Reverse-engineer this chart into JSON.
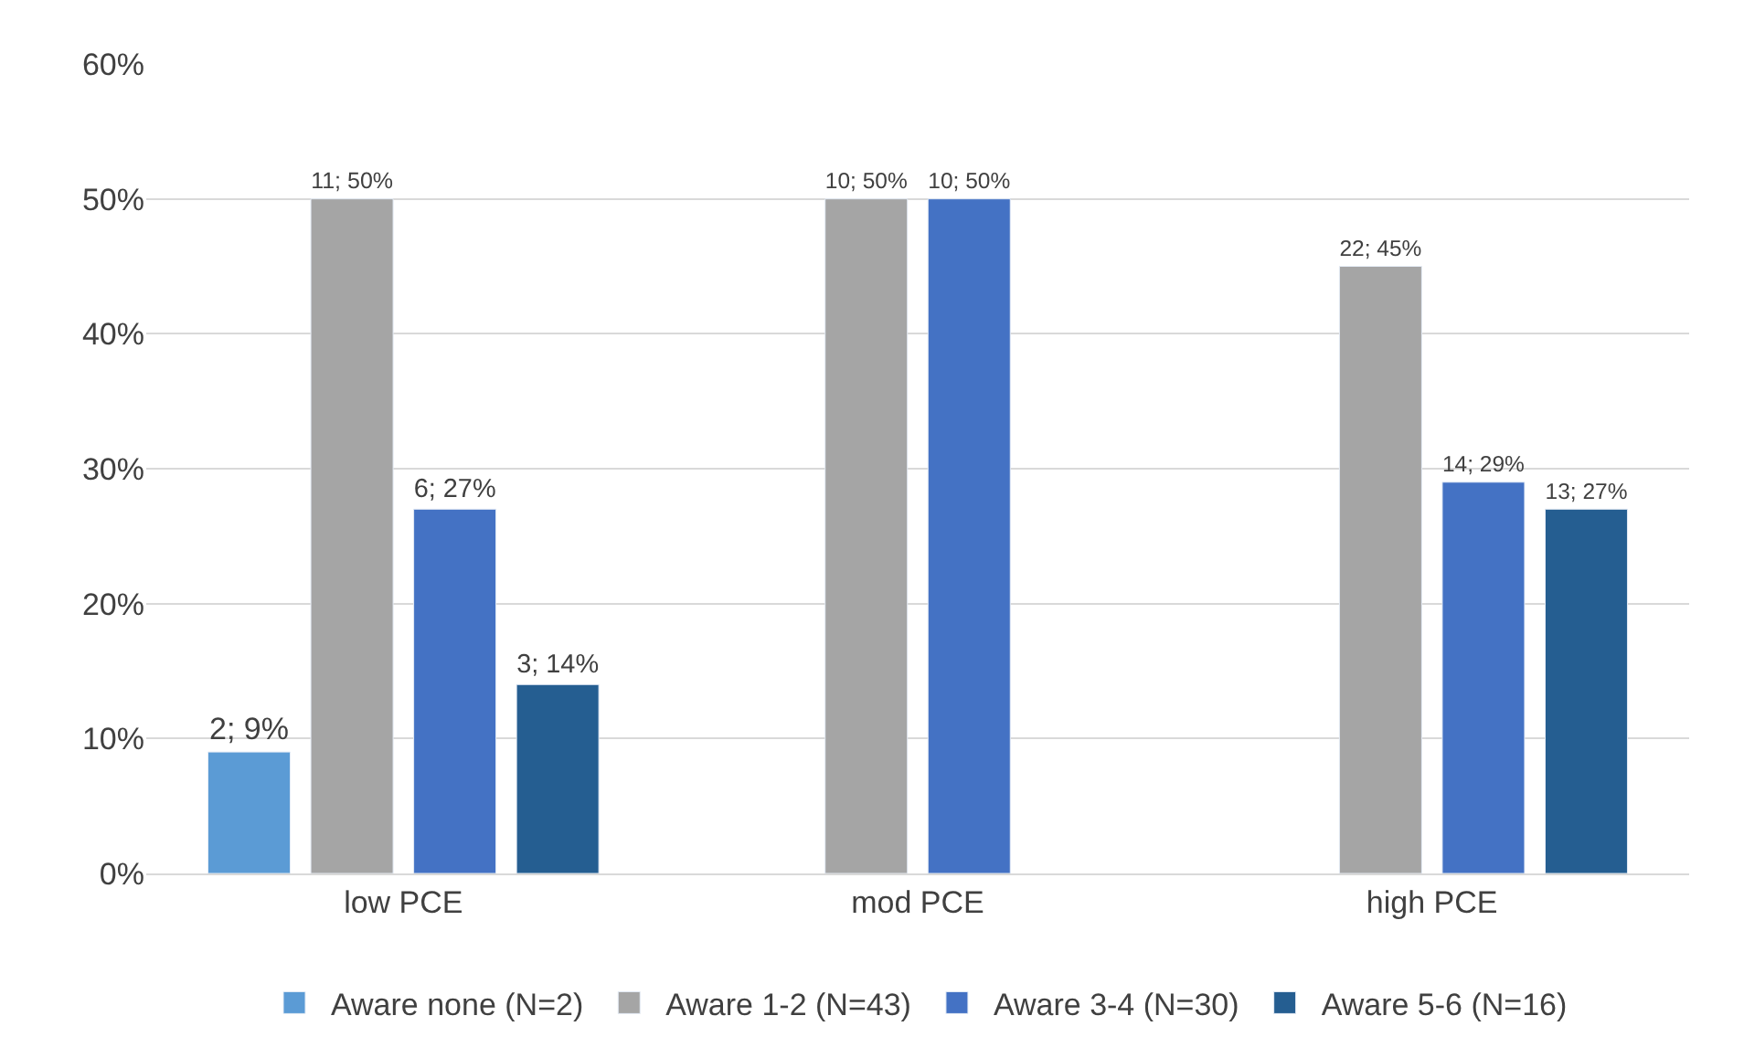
{
  "chart_data": {
    "type": "bar",
    "categories": [
      "low PCE",
      "mod PCE",
      "high PCE"
    ],
    "series": [
      {
        "name": "Aware none (N=2)",
        "color": "#5b9bd5",
        "values": [
          9,
          null,
          null
        ],
        "value_labels": [
          "2; 9%",
          null,
          null
        ]
      },
      {
        "name": "Aware 1-2 (N=43)",
        "color": "#a5a5a5",
        "values": [
          50,
          50,
          45
        ],
        "value_labels": [
          "11; 50%",
          "10; 50%",
          "22; 45%"
        ]
      },
      {
        "name": "Aware 3-4 (N=30)",
        "color": "#4472c4",
        "values": [
          27,
          50,
          29
        ],
        "value_labels": [
          "6; 27%",
          "10; 50%",
          "14; 29%"
        ]
      },
      {
        "name": "Aware 5-6 (N=16)",
        "color": "#255e91",
        "values": [
          14,
          null,
          27
        ],
        "value_labels": [
          "3; 14%",
          null,
          "13; 27%"
        ]
      }
    ],
    "ylim": [
      0,
      60
    ],
    "yticks": [
      {
        "value": 0,
        "label": "0%"
      },
      {
        "value": 10,
        "label": "10%"
      },
      {
        "value": 20,
        "label": "20%"
      },
      {
        "value": 30,
        "label": "30%"
      },
      {
        "value": 40,
        "label": "40%"
      },
      {
        "value": 50,
        "label": "50%"
      },
      {
        "value": 60,
        "label": "60%"
      }
    ],
    "grid": "y",
    "legend": "bottom"
  }
}
